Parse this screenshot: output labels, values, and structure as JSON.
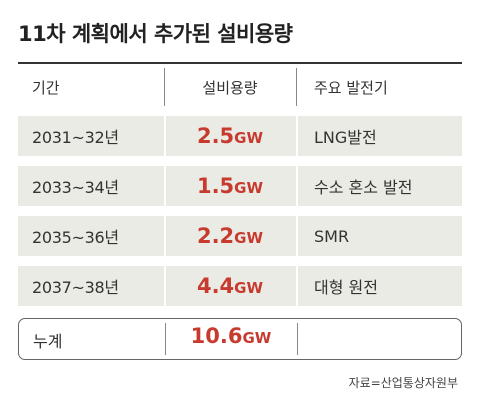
{
  "title": "11차 계획에서 추가된 설비용량",
  "headers": {
    "period": "기간",
    "capacity": "설비용량",
    "source_type": "주요 발전기"
  },
  "rows": [
    {
      "period": "2031~32년",
      "value": "2.5",
      "unit": "GW",
      "generator": "LNG발전"
    },
    {
      "period": "2033~34년",
      "value": "1.5",
      "unit": "GW",
      "generator": "수소 혼소 발전"
    },
    {
      "period": "2035~36년",
      "value": "2.2",
      "unit": "GW",
      "generator": "SMR"
    },
    {
      "period": "2037~38년",
      "value": "4.4",
      "unit": "GW",
      "generator": "대형 원전"
    }
  ],
  "total": {
    "label": "누계",
    "value": "10.6",
    "unit": "GW"
  },
  "source": "자료=산업통상자원부",
  "colors": {
    "accent": "#c73b2f",
    "row_bg": "#ebebe6"
  }
}
